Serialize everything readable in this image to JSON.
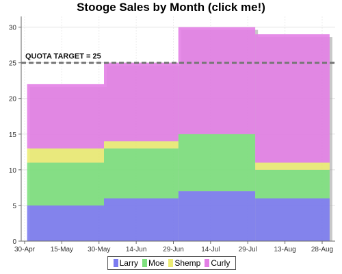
{
  "chart_data": {
    "type": "area",
    "subtype": "stacked-step",
    "title": "Stooge Sales by Month (click me!)",
    "xlabel": "",
    "ylabel": "",
    "x_ticks": [
      "30-Apr",
      "15-May",
      "30-May",
      "14-Jun",
      "29-Jun",
      "14-Jul",
      "29-Jul",
      "13-Aug",
      "28-Aug"
    ],
    "x_tick_dates": [
      "2023-04-30",
      "2023-05-15",
      "2023-05-30",
      "2023-06-14",
      "2023-06-29",
      "2023-07-14",
      "2023-07-29",
      "2023-08-13",
      "2023-08-28"
    ],
    "y_ticks": [
      0,
      5,
      10,
      15,
      20,
      25,
      30
    ],
    "ylim": [
      0,
      31.5
    ],
    "grid": true,
    "legend_position": "bottom",
    "categories": [
      "May",
      "June",
      "July",
      "August"
    ],
    "period_starts": [
      "2023-05-01",
      "2023-06-01",
      "2023-07-01",
      "2023-08-01"
    ],
    "period_end": "2023-08-31",
    "series": [
      {
        "name": "Larry",
        "values": [
          5,
          6,
          7,
          6
        ],
        "color": "#7b7bf0"
      },
      {
        "name": "Moe",
        "values": [
          6,
          7,
          8,
          4
        ],
        "color": "#7de07d"
      },
      {
        "name": "Shemp",
        "values": [
          2,
          1,
          0,
          1
        ],
        "color": "#ecec74"
      },
      {
        "name": "Curly",
        "values": [
          9,
          11,
          15,
          18
        ],
        "color": "#e37fe6"
      }
    ],
    "annotations": [
      {
        "text": "QUOTA TARGET = 25",
        "y": 25,
        "style": "dashed-line"
      }
    ]
  }
}
